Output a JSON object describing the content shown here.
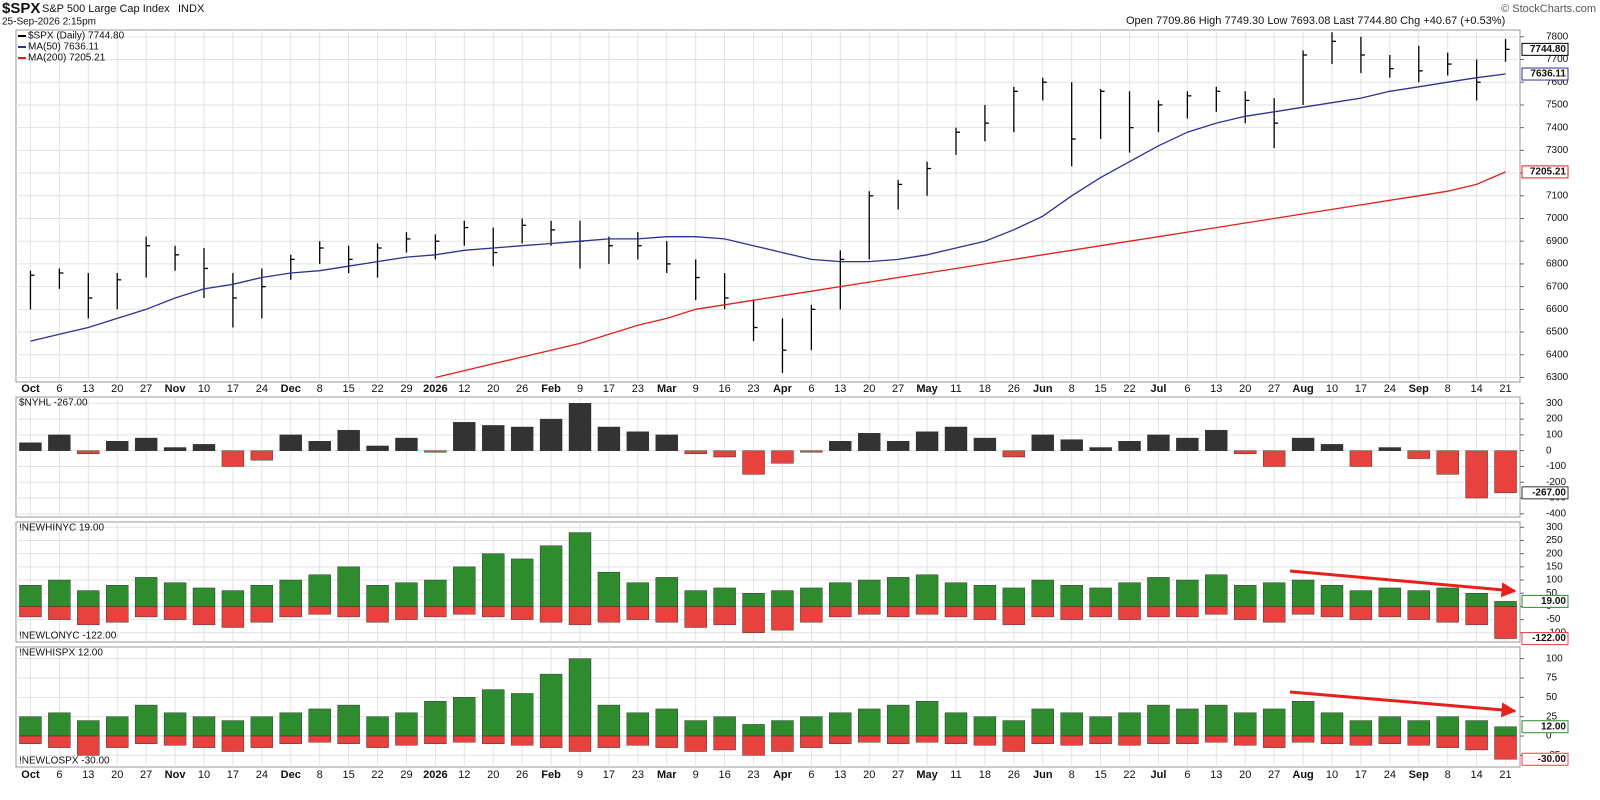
{
  "header": {
    "symbol": "$SPX",
    "name": "S&P 500 Large Cap Index",
    "exchange": "INDX",
    "date": "25-Sep-2026 2:15pm",
    "quote": [
      "Open 7709.86",
      "High 7749.30",
      "Low 7693.08",
      "Last 7744.80",
      "Chg +40.67 (+0.53%)"
    ],
    "credit": "© StockCharts.com"
  },
  "chart_data": [
    {
      "type": "ohlc",
      "categories": [
        "Oct",
        "6",
        "13",
        "20",
        "27",
        "Nov",
        "10",
        "17",
        "24",
        "Dec",
        "8",
        "15",
        "22",
        "29",
        "2026",
        "12",
        "20",
        "26",
        "Feb",
        "9",
        "17",
        "23",
        "Mar",
        "9",
        "16",
        "23",
        "Apr",
        "6",
        "13",
        "20",
        "27",
        "May",
        "11",
        "18",
        "26",
        "Jun",
        "8",
        "15",
        "22",
        "Jul",
        "6",
        "13",
        "20",
        "27",
        "Aug",
        "10",
        "17",
        "24",
        "Sep",
        "8",
        "14",
        "21"
      ],
      "ylim": [
        6280,
        7830
      ],
      "yticks": [
        6300,
        6400,
        6500,
        6600,
        6700,
        6800,
        6900,
        7000,
        7100,
        7200,
        7300,
        7400,
        7500,
        7600,
        7700,
        7800
      ],
      "grid": true,
      "series": [
        {
          "name": "$SPX (Daily) 7744.80",
          "color": "#000000",
          "tag": "7744.80",
          "high": [
            6770,
            6780,
            6760,
            6760,
            6920,
            6880,
            6870,
            6760,
            6780,
            6840,
            6900,
            6880,
            6890,
            6940,
            6930,
            6990,
            6960,
            7000,
            6990,
            6990,
            6920,
            6940,
            6900,
            6820,
            6760,
            6640,
            6560,
            6620,
            6860,
            7120,
            7170,
            7250,
            7400,
            7500,
            7580,
            7620,
            7600,
            7570,
            7560,
            7520,
            7560,
            7580,
            7560,
            7530,
            7740,
            7820,
            7800,
            7720,
            7760,
            7730,
            7700,
            7790
          ],
          "low": [
            6600,
            6690,
            6560,
            6600,
            6740,
            6770,
            6650,
            6520,
            6560,
            6730,
            6800,
            6760,
            6740,
            6850,
            6820,
            6880,
            6790,
            6890,
            6880,
            6780,
            6800,
            6820,
            6760,
            6640,
            6600,
            6460,
            6320,
            6420,
            6600,
            6820,
            7040,
            7100,
            7280,
            7340,
            7380,
            7520,
            7230,
            7350,
            7290,
            7380,
            7440,
            7470,
            7420,
            7310,
            7500,
            7680,
            7640,
            7620,
            7600,
            7630,
            7520,
            7690
          ],
          "values": [
            6750,
            6760,
            6650,
            6730,
            6880,
            6840,
            6780,
            6650,
            6700,
            6820,
            6870,
            6820,
            6870,
            6910,
            6900,
            6960,
            6850,
            6970,
            6950,
            6900,
            6880,
            6880,
            6800,
            6740,
            6650,
            6520,
            6420,
            6600,
            6820,
            7100,
            7150,
            7220,
            7380,
            7420,
            7560,
            7600,
            7350,
            7560,
            7400,
            7500,
            7540,
            7560,
            7520,
            7420,
            7720,
            7780,
            7720,
            7660,
            7650,
            7680,
            7600,
            7744.8
          ]
        },
        {
          "name": "MA(50) 7636.11",
          "color": "#2e3192",
          "tag": "7636.11",
          "values": [
            6460,
            6490,
            6520,
            6560,
            6600,
            6650,
            6690,
            6710,
            6740,
            6760,
            6770,
            6790,
            6810,
            6830,
            6840,
            6860,
            6870,
            6880,
            6890,
            6900,
            6910,
            6910,
            6920,
            6920,
            6910,
            6880,
            6850,
            6820,
            6810,
            6810,
            6820,
            6840,
            6870,
            6900,
            6950,
            7010,
            7100,
            7180,
            7250,
            7320,
            7380,
            7420,
            7450,
            7470,
            7490,
            7510,
            7530,
            7560,
            7580,
            7600,
            7620,
            7636.11
          ]
        },
        {
          "name": "MA(200) 7205.21",
          "color": "#e0201b",
          "tag": "7205.21",
          "values": [
            null,
            null,
            null,
            null,
            null,
            null,
            null,
            null,
            null,
            null,
            null,
            null,
            null,
            null,
            6300,
            6330,
            6360,
            6390,
            6420,
            6450,
            6490,
            6530,
            6560,
            6600,
            6620,
            6640,
            6660,
            6680,
            6700,
            6720,
            6740,
            6760,
            6780,
            6800,
            6820,
            6840,
            6860,
            6880,
            6900,
            6920,
            6940,
            6960,
            6980,
            7000,
            7020,
            7040,
            7060,
            7080,
            7100,
            7120,
            7150,
            7205.21
          ]
        }
      ]
    },
    {
      "type": "bar",
      "ylim": [
        -420,
        340
      ],
      "yticks": [
        -400,
        -300,
        -200,
        -100,
        0,
        100,
        200,
        300
      ],
      "grid": true,
      "series": [
        {
          "name": "$NYHL -267.00",
          "color": "#333333",
          "negative_color": "#e8423f",
          "tag": "-267.00",
          "values": [
            50,
            100,
            -20,
            60,
            80,
            20,
            40,
            -100,
            -60,
            100,
            60,
            130,
            30,
            80,
            -10,
            180,
            160,
            150,
            200,
            300,
            150,
            120,
            100,
            -20,
            -40,
            -150,
            -80,
            -10,
            60,
            110,
            60,
            120,
            150,
            80,
            -40,
            100,
            70,
            20,
            60,
            100,
            80,
            130,
            -20,
            -100,
            80,
            40,
            -100,
            20,
            -50,
            -150,
            -300,
            -267
          ]
        }
      ]
    },
    {
      "type": "bar",
      "ylim": [
        -135,
        320
      ],
      "yticks": [
        -100,
        -50,
        0,
        50,
        100,
        150,
        200,
        250,
        300
      ],
      "grid": true,
      "series": [
        {
          "name": "!NEWHINYC 19.00",
          "color": "#2e8b2e",
          "tag": "19.00",
          "values": [
            80,
            100,
            60,
            80,
            110,
            90,
            70,
            60,
            80,
            100,
            120,
            150,
            80,
            90,
            100,
            150,
            200,
            180,
            230,
            280,
            130,
            90,
            110,
            60,
            70,
            50,
            60,
            70,
            90,
            100,
            110,
            120,
            90,
            80,
            70,
            100,
            80,
            70,
            90,
            110,
            100,
            120,
            80,
            90,
            100,
            80,
            60,
            70,
            60,
            70,
            50,
            19
          ]
        },
        {
          "name": "!NEWLONYC -122.00",
          "color": "#e8423f",
          "tag": "-122.00",
          "values": [
            -40,
            -50,
            -70,
            -60,
            -40,
            -50,
            -70,
            -80,
            -60,
            -40,
            -30,
            -40,
            -60,
            -50,
            -40,
            -30,
            -40,
            -50,
            -60,
            -70,
            -60,
            -50,
            -60,
            -80,
            -70,
            -100,
            -90,
            -60,
            -40,
            -30,
            -40,
            -30,
            -40,
            -50,
            -70,
            -40,
            -50,
            -40,
            -50,
            -40,
            -40,
            -30,
            -50,
            -60,
            -30,
            -40,
            -50,
            -40,
            -50,
            -60,
            -70,
            -122
          ]
        }
      ]
    },
    {
      "type": "bar",
      "ylim": [
        -40,
        115
      ],
      "yticks": [
        -25,
        0,
        25,
        50,
        75,
        100
      ],
      "grid": true,
      "categories": [
        "Oct",
        "6",
        "13",
        "20",
        "27",
        "Nov",
        "10",
        "17",
        "24",
        "Dec",
        "8",
        "15",
        "22",
        "29",
        "2026",
        "12",
        "20",
        "26",
        "Feb",
        "9",
        "17",
        "23",
        "Mar",
        "9",
        "16",
        "23",
        "Apr",
        "6",
        "13",
        "20",
        "27",
        "May",
        "11",
        "18",
        "26",
        "Jun",
        "8",
        "15",
        "22",
        "Jul",
        "6",
        "13",
        "20",
        "27",
        "Aug",
        "10",
        "17",
        "24",
        "Sep",
        "8",
        "14",
        "21"
      ],
      "series": [
        {
          "name": "!NEWHISPX 12.00",
          "color": "#2e8b2e",
          "tag": "12.00",
          "values": [
            25,
            30,
            20,
            25,
            40,
            30,
            25,
            20,
            25,
            30,
            35,
            40,
            25,
            30,
            45,
            50,
            60,
            55,
            80,
            100,
            40,
            30,
            35,
            20,
            25,
            15,
            20,
            25,
            30,
            35,
            40,
            45,
            30,
            25,
            20,
            35,
            30,
            25,
            30,
            40,
            35,
            40,
            30,
            35,
            45,
            30,
            20,
            25,
            20,
            25,
            20,
            12
          ]
        },
        {
          "name": "!NEWLOSPX -30.00",
          "color": "#e8423f",
          "tag": "-30.00",
          "values": [
            -10,
            -15,
            -25,
            -15,
            -10,
            -12,
            -15,
            -20,
            -15,
            -10,
            -8,
            -10,
            -15,
            -12,
            -10,
            -8,
            -10,
            -12,
            -15,
            -20,
            -15,
            -12,
            -15,
            -20,
            -18,
            -25,
            -20,
            -15,
            -10,
            -8,
            -10,
            -8,
            -10,
            -12,
            -20,
            -10,
            -12,
            -10,
            -12,
            -10,
            -10,
            -8,
            -12,
            -15,
            -8,
            -10,
            -12,
            -10,
            -12,
            -15,
            -18,
            -30
          ]
        }
      ]
    }
  ]
}
